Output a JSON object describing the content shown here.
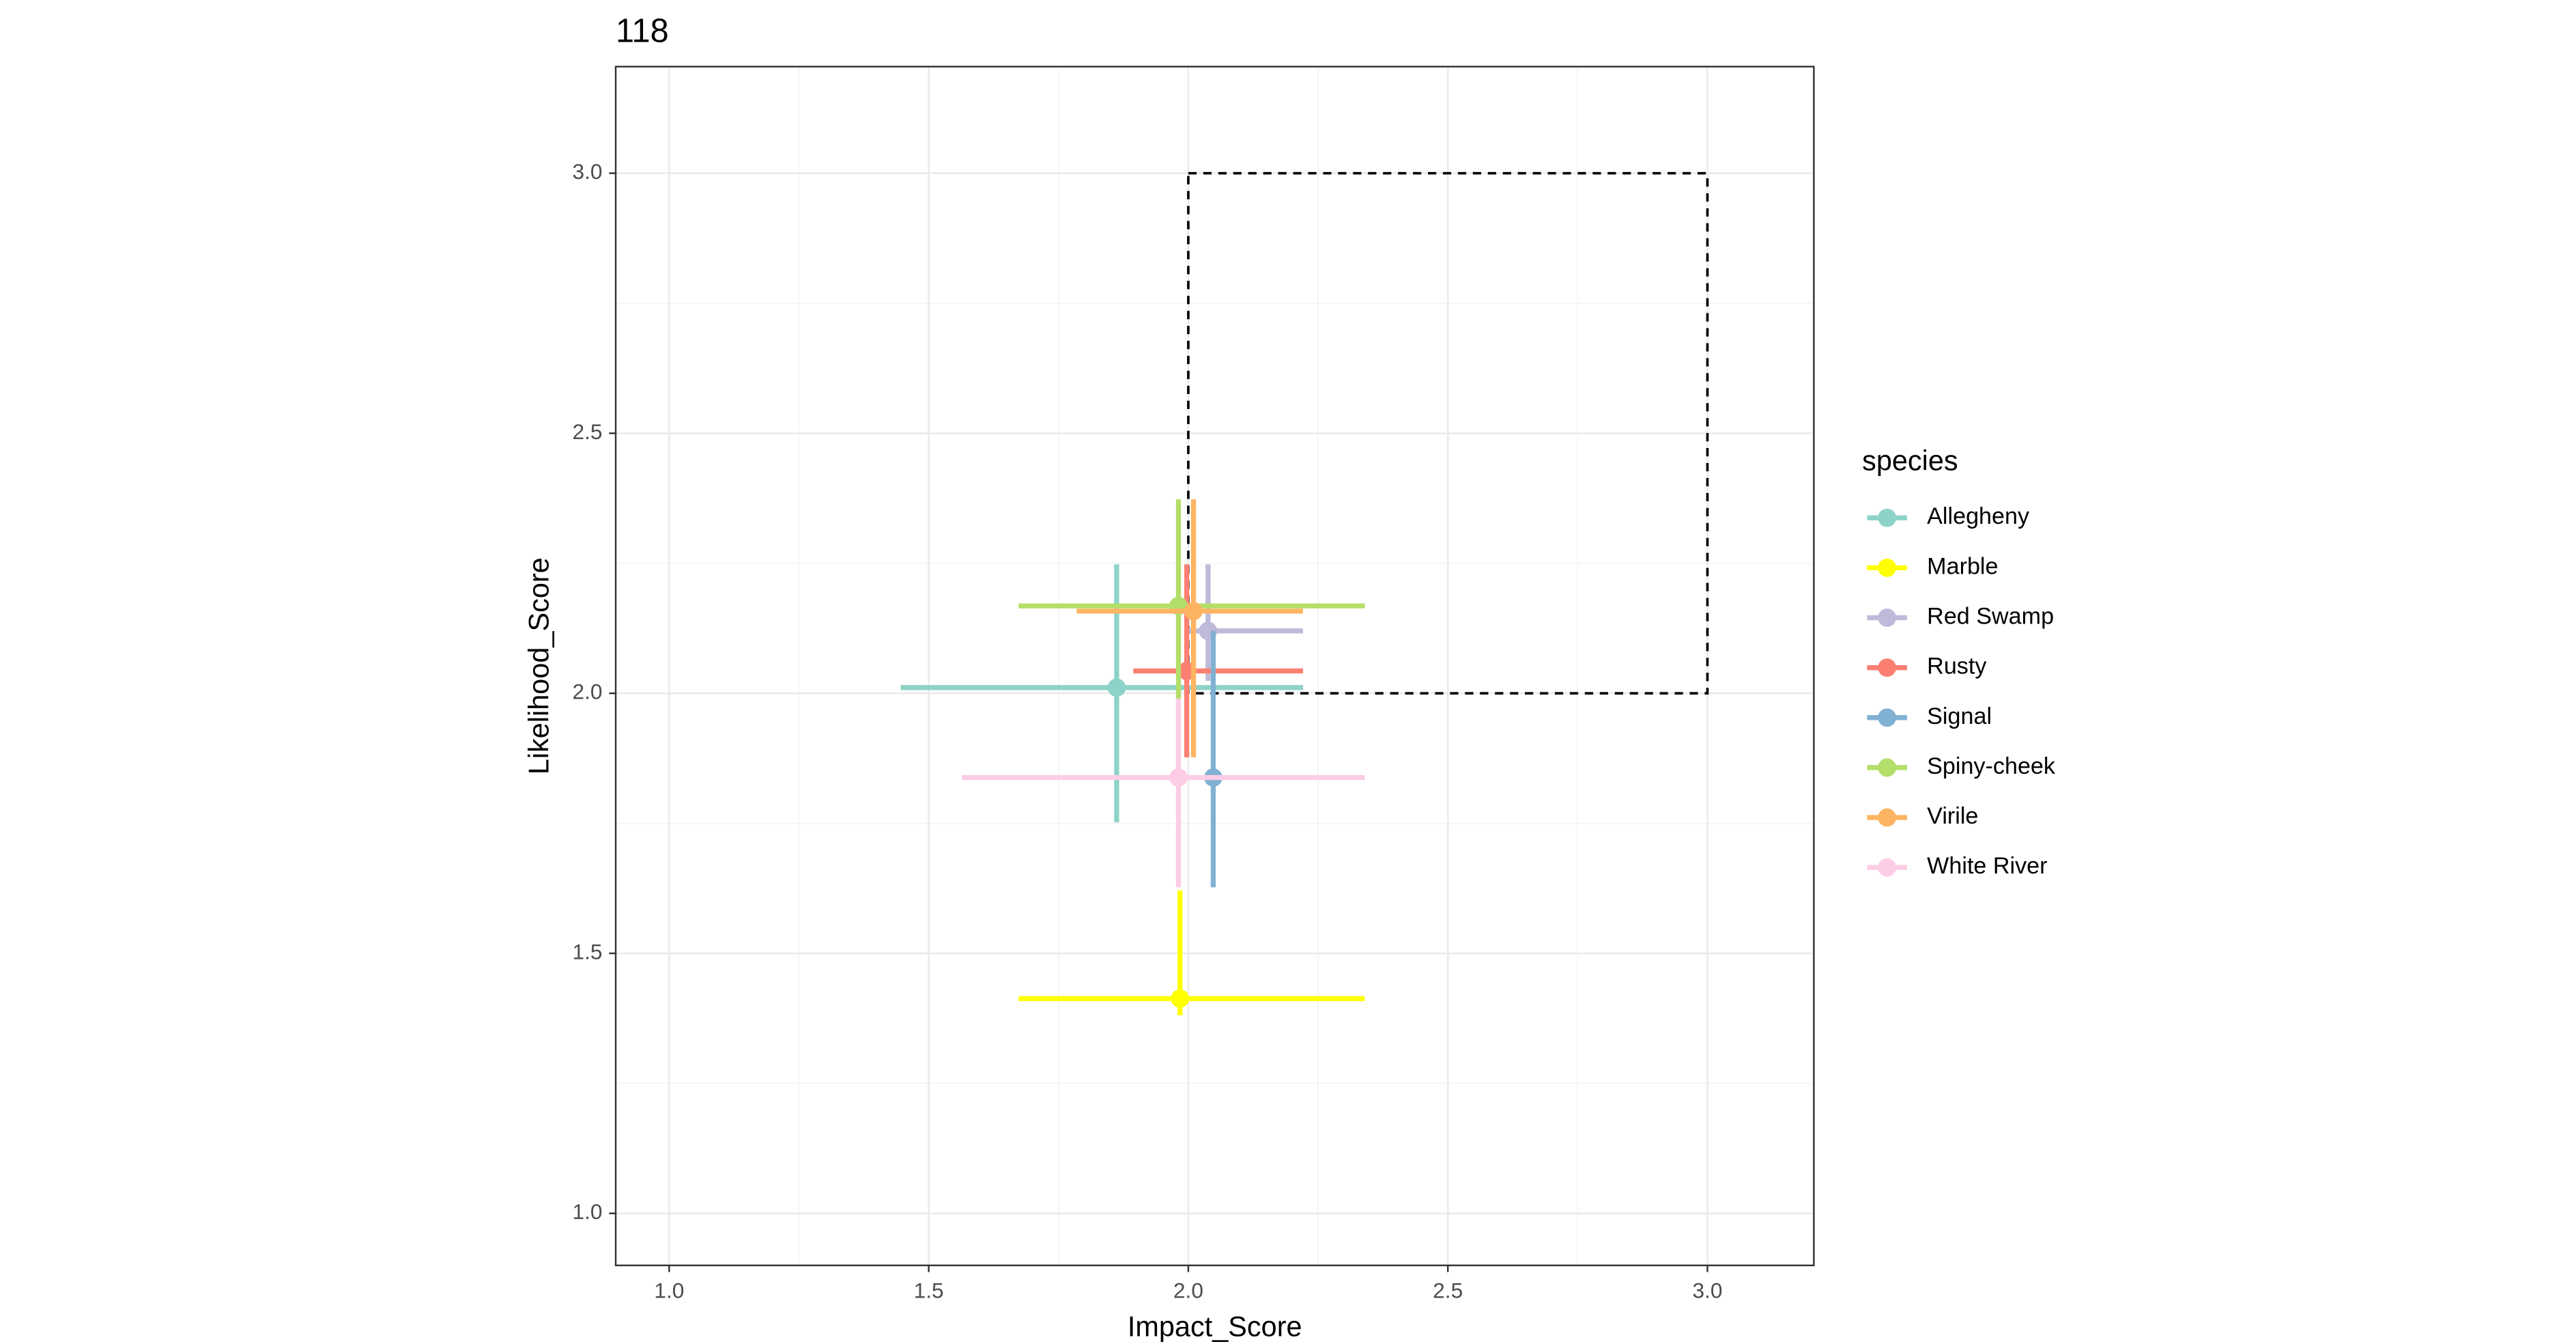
{
  "chart_data": {
    "type": "scatter",
    "title": "118",
    "x_label": "Impact_Score",
    "y_label": "Likelihood_Score",
    "xlim": [
      0.897,
      3.205
    ],
    "ylim": [
      0.9,
      3.205
    ],
    "xticks": [
      {
        "value": 1,
        "label": "1.0"
      },
      {
        "value": 1.5,
        "label": "1.5"
      },
      {
        "value": 2,
        "label": "2.0"
      },
      {
        "value": 2.5,
        "label": "2.5"
      },
      {
        "value": 3,
        "label": "3.0"
      }
    ],
    "yticks": [
      {
        "value": 1,
        "label": "1.0"
      },
      {
        "value": 1.5,
        "label": "1.5"
      },
      {
        "value": 2,
        "label": "2.0"
      },
      {
        "value": 2.5,
        "label": "2.5"
      },
      {
        "value": 3,
        "label": "3.0"
      }
    ],
    "xminor": [
      1.25,
      1.75,
      2.25,
      2.75
    ],
    "yminor": [
      1.25,
      1.75,
      2.25,
      2.75
    ],
    "grid": true,
    "legend_title": "species",
    "legend_position": "right",
    "box": {
      "xmin": 2,
      "xmax": 3,
      "ymin": 2,
      "ymax": 3
    },
    "series": [
      {
        "name": "Allegheny",
        "color": "#8dd3c7",
        "x": 1.862,
        "y": 2.011,
        "xmin": 1.446,
        "xmax": 2.221,
        "ymin": 1.752,
        "ymax": 2.248
      },
      {
        "name": "Marble",
        "color": "#ffff00",
        "x": 1.984,
        "y": 1.413,
        "xmin": 1.673,
        "xmax": 2.34,
        "ymin": 1.381,
        "ymax": 1.621
      },
      {
        "name": "Red Swamp",
        "color": "#bebada",
        "x": 2.038,
        "y": 2.12,
        "xmin": 1.997,
        "xmax": 2.221,
        "ymin": 2.024,
        "ymax": 2.248
      },
      {
        "name": "Rusty",
        "color": "#fb8072",
        "x": 1.997,
        "y": 2.043,
        "xmin": 1.894,
        "xmax": 2.221,
        "ymin": 1.877,
        "ymax": 2.248
      },
      {
        "name": "Signal",
        "color": "#80b1d3",
        "x": 2.048,
        "y": 1.838,
        "xmin": 2.038,
        "xmax": 2.058,
        "ymin": 1.627,
        "ymax": 2.12
      },
      {
        "name": "Spiny-cheek",
        "color": "#b3de69",
        "x": 1.981,
        "y": 2.168,
        "xmin": 1.673,
        "xmax": 2.34,
        "ymin": 1.99,
        "ymax": 2.373
      },
      {
        "name": "Virile",
        "color": "#fdb462",
        "x": 2.01,
        "y": 2.158,
        "xmin": 1.785,
        "xmax": 2.221,
        "ymin": 1.877,
        "ymax": 2.373
      },
      {
        "name": "White River",
        "color": "#fccde5",
        "x": 1.981,
        "y": 1.838,
        "xmin": 1.564,
        "xmax": 2.34,
        "ymin": 1.627,
        "ymax": 1.99
      }
    ]
  }
}
